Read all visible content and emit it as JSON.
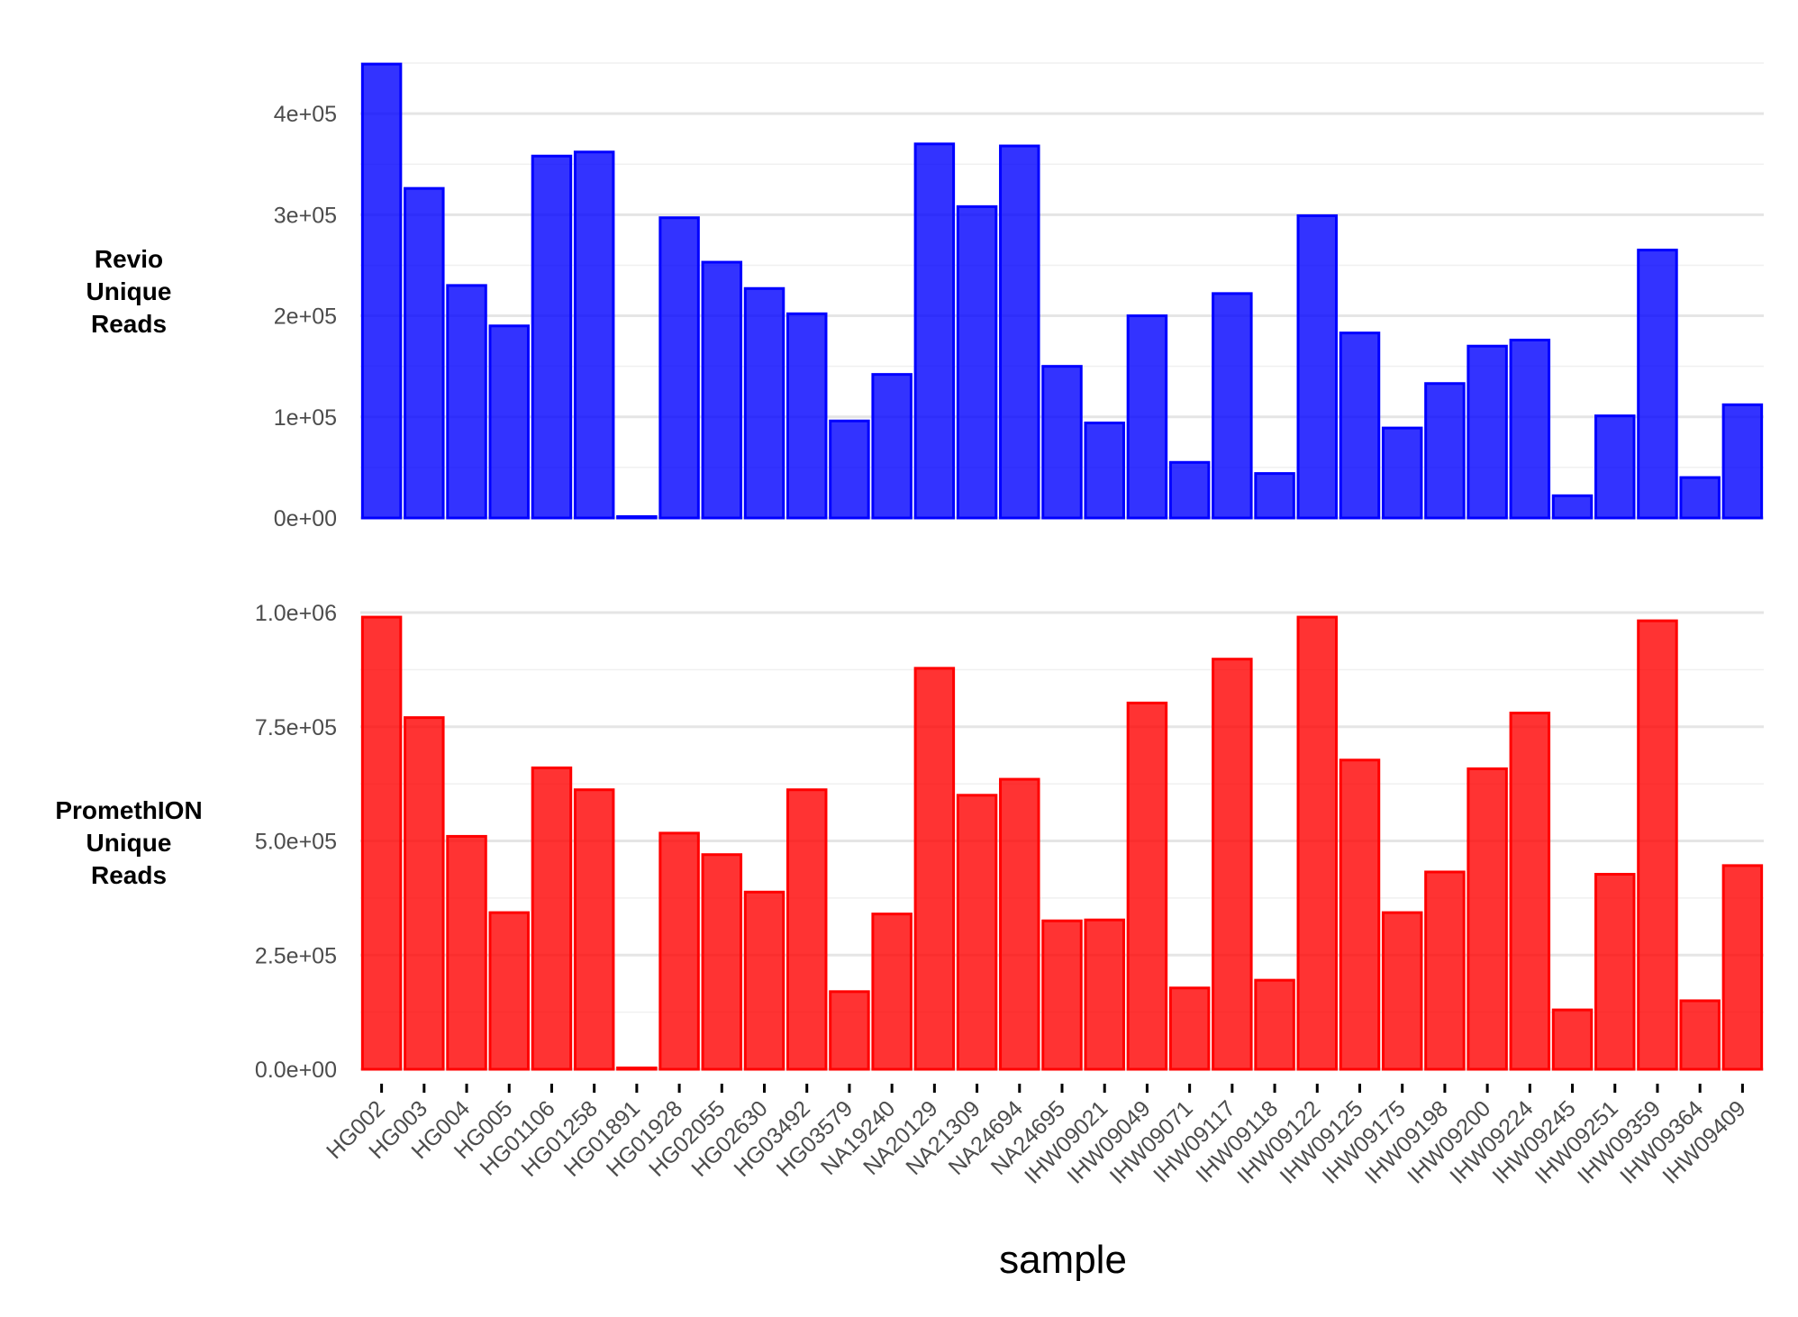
{
  "chart_data": {
    "type": "bar",
    "xlabel": "sample",
    "categories": [
      "HG002",
      "HG003",
      "HG004",
      "HG005",
      "HG01106",
      "HG01258",
      "HG01891",
      "HG01928",
      "HG02055",
      "HG02630",
      "HG03492",
      "HG03579",
      "NA19240",
      "NA20129",
      "NA21309",
      "NA24694",
      "NA24695",
      "IHW09021",
      "IHW09049",
      "IHW09071",
      "IHW09117",
      "IHW09118",
      "IHW09122",
      "IHW09125",
      "IHW09175",
      "IHW09198",
      "IHW09200",
      "IHW09224",
      "IHW09245",
      "IHW09251",
      "IHW09359",
      "IHW09364",
      "IHW09409"
    ],
    "series": [
      {
        "name": "Revio Unique Reads",
        "label_lines": [
          "Revio",
          "Unique",
          "Reads"
        ],
        "color": "#0000ff",
        "ylim": [
          0,
          450000
        ],
        "yticks": [
          0,
          100000,
          200000,
          300000,
          400000
        ],
        "ytick_labels": [
          "0e+00",
          "1e+05",
          "2e+05",
          "3e+05",
          "4e+05"
        ],
        "values": [
          449000,
          326000,
          230000,
          190000,
          358000,
          362000,
          1000,
          297000,
          253000,
          227000,
          202000,
          96000,
          142000,
          370000,
          308000,
          368000,
          150000,
          94000,
          200000,
          55000,
          222000,
          44000,
          299000,
          183000,
          89000,
          133000,
          170000,
          176000,
          22000,
          101000,
          265000,
          40000,
          112000
        ]
      },
      {
        "name": "PromethION Unique Reads",
        "label_lines": [
          "PromethION",
          "Unique",
          "Reads"
        ],
        "color": "#ff0000",
        "ylim": [
          0,
          1000000
        ],
        "yticks": [
          0,
          250000,
          500000,
          750000,
          1000000
        ],
        "ytick_labels": [
          "0.0e+00",
          "2.5e+05",
          "5.0e+05",
          "7.5e+05",
          "1.0e+06"
        ],
        "values": [
          990000,
          770000,
          510000,
          343000,
          660000,
          612000,
          3000,
          517000,
          470000,
          388000,
          612000,
          170000,
          340000,
          878000,
          600000,
          635000,
          325000,
          327000,
          802000,
          178000,
          898000,
          195000,
          990000,
          677000,
          343000,
          432000,
          658000,
          780000,
          130000,
          427000,
          982000,
          150000,
          446000
        ]
      }
    ]
  }
}
